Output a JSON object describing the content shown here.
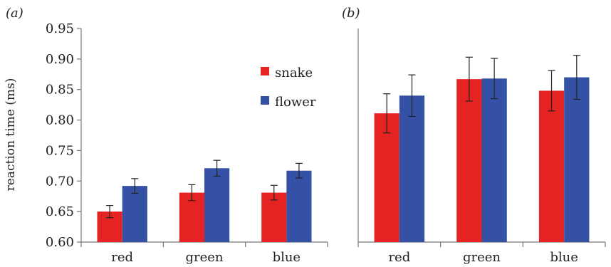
{
  "chart_data": [
    {
      "type": "bar",
      "panel_label": "(a)",
      "categories": [
        "red",
        "green",
        "blue"
      ],
      "series": [
        {
          "name": "snake",
          "color": "#e52323",
          "values": [
            0.65,
            0.681,
            0.681
          ],
          "errors": [
            0.01,
            0.013,
            0.012
          ]
        },
        {
          "name": "flower",
          "color": "#3451a6",
          "values": [
            0.692,
            0.721,
            0.717
          ],
          "errors": [
            0.012,
            0.013,
            0.012
          ]
        }
      ],
      "ylabel": "reaction time (ms)",
      "ylim": [
        0.6,
        0.95
      ],
      "yticks": [
        "0.60",
        "0.65",
        "0.70",
        "0.75",
        "0.80",
        "0.85",
        "0.90",
        "0.95"
      ],
      "legend": "upper-right",
      "grid": false
    },
    {
      "type": "bar",
      "panel_label": "(b)",
      "categories": [
        "red",
        "green",
        "blue"
      ],
      "series": [
        {
          "name": "snake",
          "color": "#e52323",
          "values": [
            0.811,
            0.867,
            0.848
          ],
          "errors": [
            0.032,
            0.036,
            0.033
          ]
        },
        {
          "name": "flower",
          "color": "#3451a6",
          "values": [
            0.84,
            0.868,
            0.87
          ],
          "errors": [
            0.034,
            0.033,
            0.036
          ]
        }
      ],
      "ylim": [
        0.6,
        0.95
      ],
      "grid": false
    }
  ]
}
